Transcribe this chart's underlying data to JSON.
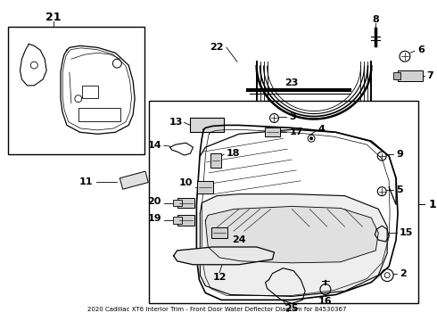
{
  "title": "2020 Cadillac XT6 Interior Trim - Front Door Water Deflector Diagram for 84530367",
  "background_color": "#ffffff",
  "line_color": "#000000",
  "figsize": [
    4.9,
    3.6
  ],
  "dpi": 100
}
